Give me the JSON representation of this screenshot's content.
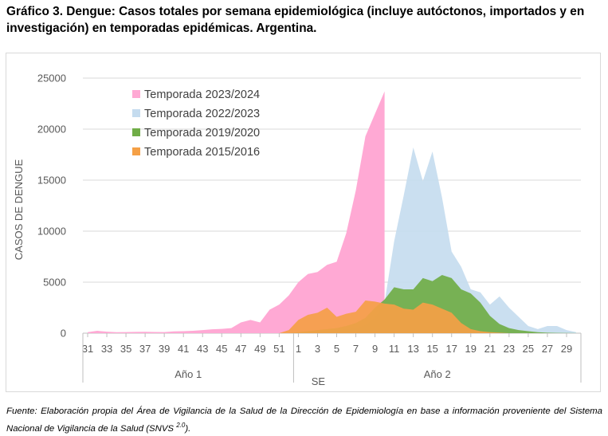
{
  "title": "Gráfico 3. Dengue: Casos totales por semana epidemiológica (incluye autóctonos, importados y en investigación) en temporadas epidémicas. Argentina.",
  "source_text": "Fuente: Elaboración propia del Área de Vigilancia de la Salud de la Dirección de Epidemiología en base a información proveniente del Sistema Nacional de Vigilancia de la Salud (SNVS ",
  "source_superscript": "2.0",
  "source_end": ").",
  "colors": {
    "s2324": "#ffa9d4",
    "s2223": "#c5dcef",
    "s1920": "#70ad47",
    "s1516": "#f5a046",
    "grid": "#d9d9d9",
    "axis": "#bfbfbf"
  },
  "chart_data": {
    "type": "area",
    "ylabel": "CASOS DE DENGUE",
    "ylim": [
      0,
      25000
    ],
    "yticks": [
      0,
      5000,
      10000,
      15000,
      20000,
      25000
    ],
    "x_tick_labels": [
      "31",
      "33",
      "35",
      "37",
      "39",
      "41",
      "43",
      "45",
      "47",
      "49",
      "51",
      "1",
      "3",
      "5",
      "7",
      "9",
      "11",
      "13",
      "15",
      "17",
      "19",
      "21",
      "23",
      "25",
      "27",
      "29"
    ],
    "group_labels": [
      "Año 1",
      "Año 2"
    ],
    "x_axis_label": "SE",
    "legend_position": "top-center",
    "grid": true,
    "weeks": [
      "31",
      "32",
      "33",
      "34",
      "35",
      "36",
      "37",
      "38",
      "39",
      "40",
      "41",
      "42",
      "43",
      "44",
      "45",
      "46",
      "47",
      "48",
      "49",
      "50",
      "51",
      "52",
      "1",
      "2",
      "3",
      "4",
      "5",
      "6",
      "7",
      "8",
      "9",
      "10",
      "11",
      "12",
      "13",
      "14",
      "15",
      "16",
      "17",
      "18",
      "19",
      "20",
      "21",
      "22",
      "23",
      "24",
      "25",
      "26",
      "27",
      "28",
      "29",
      "30"
    ],
    "series": [
      {
        "name": "Temporada 2023/2024",
        "color": "#ffa9d4",
        "end_index": 31,
        "values": [
          100,
          230,
          150,
          100,
          110,
          130,
          140,
          120,
          110,
          180,
          200,
          230,
          300,
          380,
          420,
          500,
          1050,
          1300,
          1050,
          2300,
          2800,
          3700,
          5000,
          5800,
          6000,
          6700,
          7000,
          9800,
          14000,
          19300,
          21500,
          23700
        ]
      },
      {
        "name": "Temporada 2022/2023",
        "color": "#c5dcef",
        "end_index": 51,
        "values": [
          0,
          0,
          0,
          0,
          0,
          0,
          0,
          0,
          0,
          0,
          0,
          0,
          0,
          0,
          0,
          0,
          0,
          0,
          0,
          0,
          0,
          0,
          100,
          150,
          200,
          250,
          300,
          400,
          500,
          800,
          1500,
          3000,
          9000,
          13500,
          18200,
          14900,
          17800,
          13300,
          8000,
          6500,
          4300,
          4000,
          2800,
          3600,
          2500,
          1600,
          700,
          400,
          700,
          700,
          300,
          100
        ]
      },
      {
        "name": "Temporada 2019/2020",
        "color": "#70ad47",
        "end_index": 51,
        "values": [
          0,
          0,
          0,
          0,
          0,
          0,
          0,
          0,
          0,
          0,
          0,
          0,
          0,
          0,
          0,
          0,
          0,
          0,
          0,
          0,
          0,
          0,
          100,
          200,
          300,
          400,
          500,
          700,
          1000,
          1500,
          2500,
          3300,
          4500,
          4300,
          4300,
          5400,
          5100,
          5700,
          5400,
          4300,
          3900,
          3000,
          1700,
          900,
          500,
          300,
          200,
          100,
          50,
          30,
          20,
          10
        ]
      },
      {
        "name": "Temporada 2015/2016",
        "color": "#f5a046",
        "end_index": 51,
        "values": [
          0,
          0,
          0,
          0,
          0,
          0,
          0,
          0,
          0,
          0,
          0,
          0,
          0,
          0,
          0,
          0,
          0,
          0,
          0,
          0,
          0,
          300,
          1300,
          1800,
          2000,
          2500,
          1600,
          1900,
          2100,
          3200,
          3100,
          2900,
          2800,
          2400,
          2300,
          3000,
          2800,
          2400,
          2000,
          1000,
          400,
          200,
          100,
          50,
          0,
          0,
          0,
          0,
          0,
          0,
          0,
          0
        ]
      }
    ]
  }
}
